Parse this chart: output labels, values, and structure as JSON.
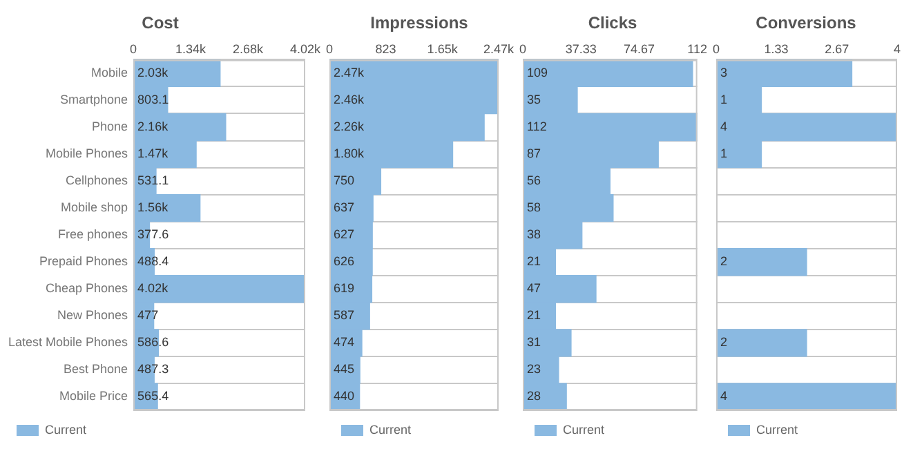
{
  "chart_data": [
    {
      "type": "bar",
      "orientation": "horizontal",
      "title": "Cost",
      "categories": [
        "Mobile",
        "Smartphone",
        "Phone",
        "Mobile Phones",
        "Cellphones",
        "Mobile shop",
        "Free phones",
        "Prepaid Phones",
        "Cheap Phones",
        "New Phones",
        "Latest Mobile Phones",
        "Best Phone",
        "Mobile Price"
      ],
      "series": [
        {
          "name": "Current",
          "color": "#8ab9e1",
          "values": [
            2030,
            803.1,
            2160,
            1470,
            531.1,
            1560,
            377.6,
            488.4,
            4020,
            477,
            586.6,
            487.3,
            565.4
          ],
          "value_labels": [
            "2.03k",
            "803.1",
            "2.16k",
            "1.47k",
            "531.1",
            "1.56k",
            "377.6",
            "488.4",
            "4.02k",
            "477",
            "586.6",
            "487.3",
            "565.4"
          ]
        }
      ],
      "xlim": [
        0,
        4020
      ],
      "xticks": [
        0,
        {
          "value": 1340,
          "label": "1.34k"
        },
        {
          "value": 2680,
          "label": "2.68k"
        },
        {
          "value": 4020,
          "label": "4.02k"
        }
      ],
      "grid": "y",
      "legend": "bottom"
    },
    {
      "type": "bar",
      "orientation": "horizontal",
      "title": "Impressions",
      "categories": [
        null,
        null,
        null,
        null,
        null,
        null,
        null,
        null,
        null,
        null,
        null,
        null,
        null
      ],
      "series": [
        {
          "name": "Current",
          "color": "#8ab9e1",
          "values": [
            2470,
            2460,
            2260,
            1800,
            750,
            637,
            627,
            626,
            619,
            587,
            474,
            445,
            440
          ],
          "value_labels": [
            "2.47k",
            "2.46k",
            "2.26k",
            "1.80k",
            "750",
            "637",
            "627",
            "626",
            "619",
            "587",
            "474",
            "445",
            "440"
          ]
        }
      ],
      "xlim": [
        0,
        2470
      ],
      "xticks": [
        0,
        823,
        {
          "value": 1650,
          "label": "1.65k"
        },
        {
          "value": 2470,
          "label": "2.47k"
        }
      ],
      "grid": "y",
      "legend": "bottom",
      "tick_labels": "x"
    },
    {
      "type": "bar",
      "orientation": "horizontal",
      "title": "Clicks",
      "categories": [
        null,
        null,
        null,
        null,
        null,
        null,
        null,
        null,
        null,
        null,
        null,
        null,
        null
      ],
      "series": [
        {
          "name": "Current",
          "color": "#8ab9e1",
          "values": [
            109,
            35,
            112,
            87,
            56,
            58,
            38,
            21,
            47,
            21,
            31,
            23,
            28
          ]
        }
      ],
      "xlim": [
        0,
        112
      ],
      "xticks": [
        0,
        37.33,
        74.67,
        112
      ],
      "grid": "y",
      "legend": "bottom",
      "tick_labels": "x",
      "data_labels": true
    },
    {
      "type": "bar",
      "orientation": "horizontal",
      "title": "Conversions",
      "categories": [
        null,
        null,
        null,
        null,
        null,
        null,
        null,
        null,
        null,
        null,
        null,
        null,
        null
      ],
      "series": [
        {
          "name": "Current",
          "color": "#8ab9e1",
          "values": [
            3,
            1,
            4,
            1,
            null,
            null,
            null,
            2,
            null,
            null,
            2,
            null,
            4
          ]
        }
      ],
      "xlim": [
        0,
        4
      ],
      "xticks": [
        0,
        1.33,
        2.67,
        4
      ],
      "grid": "y",
      "legend": "bottom",
      "tick_labels": "x",
      "data_labels": true
    }
  ]
}
